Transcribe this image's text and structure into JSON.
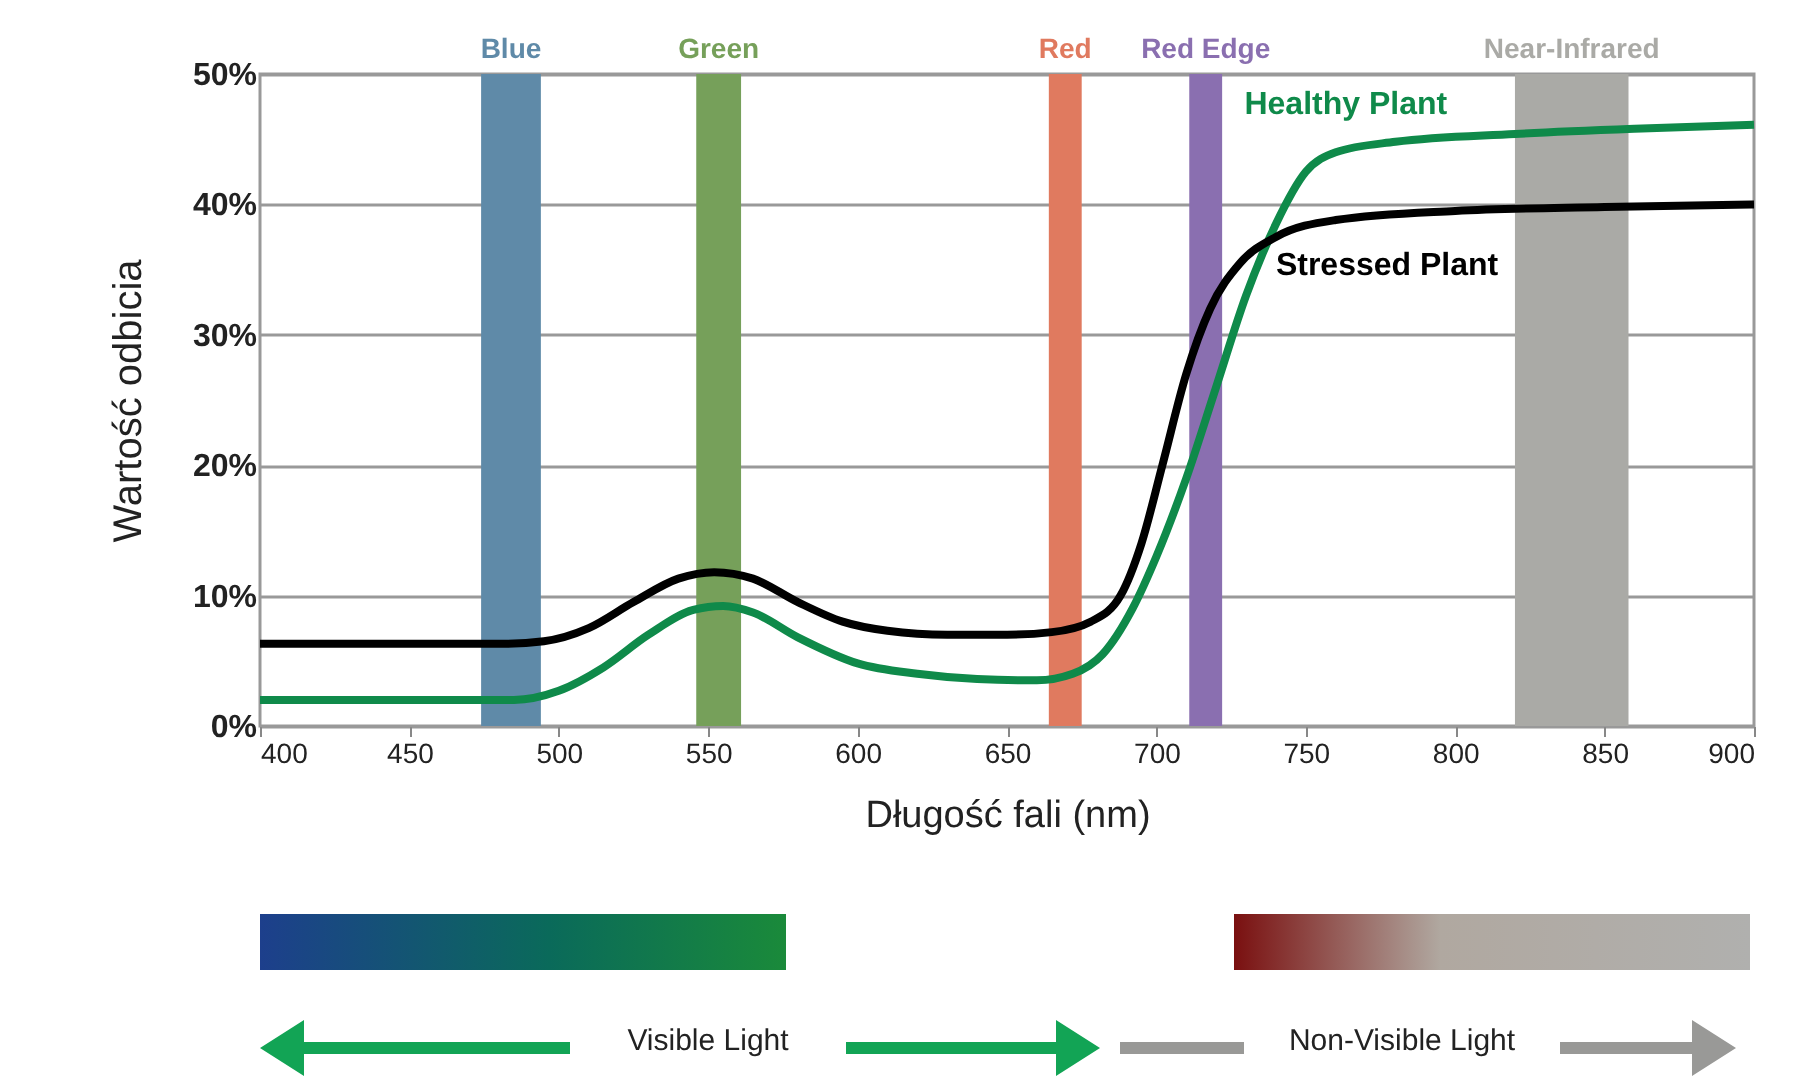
{
  "chart_data": {
    "type": "line",
    "xlabel": "Długość fali (nm)",
    "ylabel": "Wartość odbicia",
    "x": [
      400,
      450,
      480,
      495,
      510,
      525,
      540,
      552,
      565,
      580,
      595,
      610,
      630,
      650,
      665,
      678,
      688,
      695,
      702,
      710,
      718,
      728,
      740,
      760,
      800,
      850,
      900
    ],
    "series": [
      {
        "name": "Healthy Plant",
        "color": "#0f8a4a",
        "x": [
          400,
          450,
          485,
          500,
          515,
          530,
          545,
          555,
          565,
          580,
          600,
          620,
          640,
          660,
          672,
          682,
          692,
          700,
          710,
          720,
          730,
          740,
          750,
          760,
          780,
          820,
          860,
          900
        ],
        "values": [
          2,
          2,
          2,
          2.7,
          4.5,
          7,
          8.9,
          9.2,
          8.7,
          6.8,
          4.8,
          4,
          3.6,
          3.5,
          4,
          5.5,
          9,
          13,
          19,
          26,
          33,
          38.5,
          42.5,
          44,
          44.8,
          45.4,
          45.8,
          46.1
        ]
      },
      {
        "name": "Stressed Plant",
        "color": "#000000",
        "values": [
          6.3,
          6.3,
          6.3,
          6.5,
          7.5,
          9.5,
          11.3,
          11.8,
          11.3,
          9.5,
          8,
          7.3,
          7,
          7,
          7.2,
          8,
          10,
          14,
          20,
          27,
          32,
          35.5,
          37.5,
          38.8,
          39.5,
          39.8,
          40
        ]
      }
    ],
    "xlim": [
      400,
      900
    ],
    "xticks": [
      400,
      450,
      500,
      550,
      600,
      650,
      700,
      750,
      800,
      850,
      900
    ],
    "ylim": [
      0,
      50
    ],
    "yticks": [
      {
        "value": 0,
        "label": "0%"
      },
      {
        "value": 10,
        "label": "10%"
      },
      {
        "value": 20,
        "label": "20%"
      },
      {
        "value": 30,
        "label": "30%"
      },
      {
        "value": 40,
        "label": "40%"
      },
      {
        "value": 50,
        "label": "50%"
      }
    ],
    "grid": "y",
    "legend": false,
    "marker": "none",
    "line_style": "solid",
    "bands": [
      {
        "axis": "x",
        "from": 474,
        "to": 494,
        "label": "Blue",
        "color": "#5f8aa8"
      },
      {
        "axis": "x",
        "from": 546,
        "to": 561,
        "label": "Green",
        "color": "#76a05a"
      },
      {
        "axis": "x",
        "from": 664,
        "to": 675,
        "label": "Red",
        "color": "#e07a5f"
      },
      {
        "axis": "x",
        "from": 711,
        "to": 722,
        "label": "Red Edge",
        "color": "#8a6fb0"
      },
      {
        "axis": "x",
        "from": 820,
        "to": 858,
        "label": "Near-Infrared",
        "color": "#aaaaa6"
      }
    ],
    "annotations": [
      "Visible Light",
      "Non-Visible Light"
    ]
  }
}
